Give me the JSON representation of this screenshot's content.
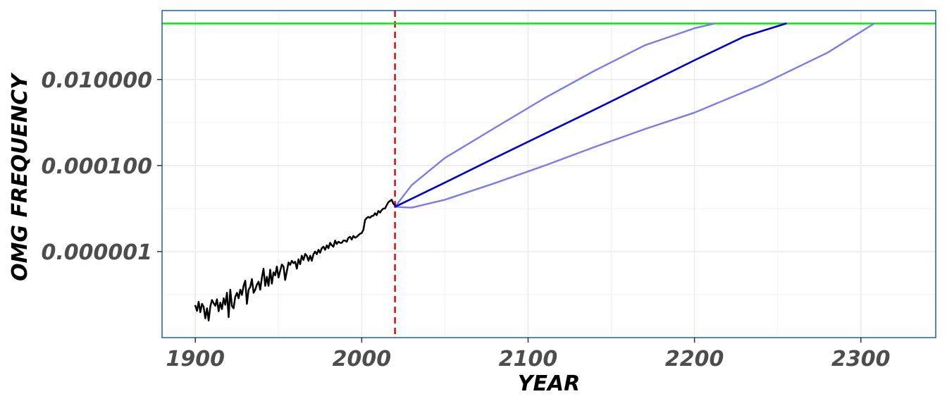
{
  "chart_data": {
    "type": "line",
    "xlabel": "YEAR",
    "ylabel": "OMG FREQUENCY",
    "x_scale": "linear",
    "y_scale": "log10",
    "xlim": [
      1880,
      2345
    ],
    "ylim": [
      1e-08,
      0.4
    ],
    "x_ticks": [
      {
        "value": 1900,
        "label": "1900"
      },
      {
        "value": 2000,
        "label": "2000"
      },
      {
        "value": 2100,
        "label": "2100"
      },
      {
        "value": 2200,
        "label": "2200"
      },
      {
        "value": 2300,
        "label": "2300"
      }
    ],
    "y_ticks": [
      {
        "value": 0.01,
        "label": "0.010000"
      },
      {
        "value": 0.0001,
        "label": "0.000100"
      },
      {
        "value": 1e-06,
        "label": "0.000001"
      }
    ],
    "grid": true,
    "colors": {
      "observed": "#000000",
      "projection": "#0000cc",
      "interval": "#7b7bee",
      "cutoff_line": "#dd0000",
      "threshold_line": "#00ee00",
      "panel_border": "#1f5fa8",
      "grid": "#ebebeb"
    },
    "reference_lines": [
      {
        "orientation": "vertical",
        "x": 2020,
        "style": "dashed",
        "color": "#dd0000"
      },
      {
        "orientation": "horizontal",
        "y": 0.2,
        "style": "solid",
        "color": "#00ee00"
      }
    ],
    "series": [
      {
        "role": "observed",
        "x": [
          1900,
          1901,
          1902,
          1903,
          1904,
          1905,
          1906,
          1907,
          1908,
          1909,
          1910,
          1911,
          1912,
          1913,
          1914,
          1915,
          1916,
          1917,
          1918,
          1919,
          1920,
          1921,
          1922,
          1923,
          1924,
          1925,
          1926,
          1927,
          1928,
          1929,
          1930,
          1931,
          1932,
          1933,
          1934,
          1935,
          1936,
          1937,
          1938,
          1939,
          1940,
          1941,
          1942,
          1943,
          1944,
          1945,
          1946,
          1947,
          1948,
          1949,
          1950,
          1951,
          1952,
          1953,
          1954,
          1955,
          1956,
          1957,
          1958,
          1959,
          1960,
          1961,
          1962,
          1963,
          1964,
          1965,
          1966,
          1967,
          1968,
          1969,
          1970,
          1971,
          1972,
          1973,
          1974,
          1975,
          1976,
          1977,
          1978,
          1979,
          1980,
          1981,
          1982,
          1983,
          1984,
          1985,
          1986,
          1987,
          1988,
          1989,
          1990,
          1991,
          1992,
          1993,
          1994,
          1995,
          1996,
          1997,
          1998,
          1999,
          2000,
          2001,
          2002,
          2003,
          2004,
          2005,
          2006,
          2007,
          2008,
          2009,
          2010,
          2011,
          2012,
          2013,
          2014,
          2015,
          2016,
          2017,
          2018,
          2019,
          2020
        ],
        "y": [
          5.5e-08,
          4.2e-08,
          6.8e-08,
          3.9e-08,
          6.1e-08,
          5.2e-08,
          2.8e-08,
          4.8e-08,
          2.5e-08,
          5.3e-08,
          7.5e-08,
          6.3e-08,
          5.5e-08,
          7.8e-08,
          4.1e-08,
          6.5e-08,
          4.6e-08,
          8.2e-08,
          5.8e-08,
          1.1e-07,
          3e-08,
          1.3e-07,
          5.4e-08,
          4.8e-08,
          8.9e-08,
          1.1e-07,
          8.2e-08,
          1.3e-07,
          9.8e-08,
          1.6e-07,
          2.1e-07,
          6.1e-08,
          1.3e-07,
          1.5e-07,
          2.3e-07,
          1.1e-07,
          1.3e-07,
          1.7e-07,
          2e-07,
          1.3e-07,
          2.5e-07,
          4e-07,
          1.6e-07,
          2.6e-07,
          1.6e-07,
          3.8e-07,
          1.8e-07,
          3.3e-07,
          2.8e-07,
          4.5e-07,
          2.5e-07,
          3.6e-07,
          5e-07,
          4.5e-07,
          2.2e-07,
          3.5e-07,
          5.6e-07,
          4.9e-07,
          6.1e-07,
          5.4e-07,
          5.8e-07,
          4e-07,
          6.6e-07,
          5.1e-07,
          8e-07,
          6.4e-07,
          8.8e-07,
          8e-07,
          6.1e-07,
          8e-07,
          6.1e-07,
          8.7e-07,
          1e-06,
          8.7e-07,
          1.1e-06,
          9.4e-07,
          1.2e-06,
          1.3e-06,
          1.1e-06,
          1.4e-06,
          1.2e-06,
          1.6e-06,
          1.4e-06,
          1.3e-06,
          1.8e-06,
          1.5e-06,
          1.7e-06,
          1.6e-06,
          1.6e-06,
          1.8e-06,
          1.8e-06,
          1.7e-06,
          2.1e-06,
          2.2e-06,
          1.9e-06,
          2.3e-06,
          2.1e-06,
          2.2e-06,
          2.4e-06,
          2.6e-06,
          2.7e-06,
          3.2e-06,
          5.4e-06,
          6e-06,
          6.4e-06,
          6.1e-06,
          6.7e-06,
          6.8e-06,
          7.8e-06,
          7e-06,
          8.8e-06,
          8.1e-06,
          9.2e-06,
          1e-05,
          1e-05,
          1.2e-05,
          1.4e-05,
          1.5e-05,
          1.6e-05,
          1.3e-05,
          1.2e-05
        ]
      },
      {
        "role": "projection",
        "x": [
          2020,
          2050,
          2080,
          2110,
          2140,
          2170,
          2200,
          2230,
          2255
        ],
        "y": [
          1.1e-05,
          4e-05,
          0.00015,
          0.00055,
          0.002,
          0.0075,
          0.028,
          0.1,
          0.2
        ]
      },
      {
        "role": "upper_bound",
        "x": [
          2020,
          2030,
          2050,
          2080,
          2110,
          2140,
          2170,
          2200,
          2212
        ],
        "y": [
          1.1e-05,
          3.5e-05,
          0.00015,
          0.00075,
          0.0037,
          0.016,
          0.062,
          0.155,
          0.2
        ]
      },
      {
        "role": "lower_bound",
        "x": [
          2020,
          2030,
          2050,
          2080,
          2110,
          2140,
          2170,
          2200,
          2240,
          2280,
          2308
        ],
        "y": [
          1.1e-05,
          1.05e-05,
          1.6e-05,
          3.9e-05,
          0.0001,
          0.00027,
          0.0007,
          0.0017,
          0.0075,
          0.042,
          0.2
        ]
      }
    ]
  }
}
